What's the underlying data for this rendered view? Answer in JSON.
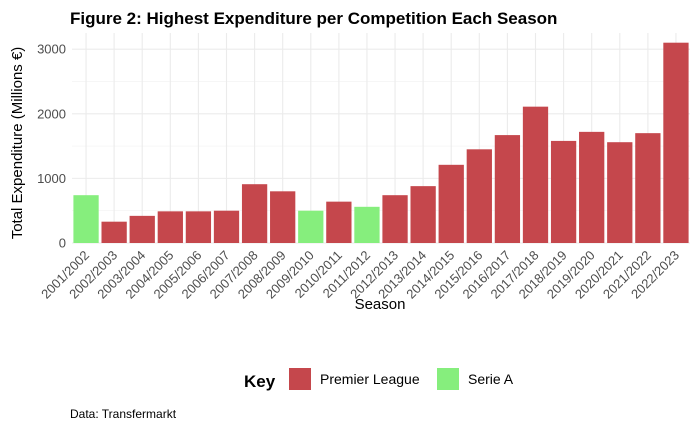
{
  "chart_data": {
    "type": "bar",
    "title": "Figure 2: Highest Expenditure per Competition Each Season",
    "xlabel": "Season",
    "ylabel": "Total Expenditure (Millions €)",
    "ylim": [
      0,
      3250
    ],
    "yticks": [
      0,
      1000,
      2000,
      3000
    ],
    "grid": true,
    "legend": {
      "title": "Key",
      "position": "bottom",
      "entries": [
        {
          "label": "Premier League",
          "color": "#C5474C"
        },
        {
          "label": "Serie A",
          "color": "#86EE7D"
        }
      ]
    },
    "categories": [
      "2001/2002",
      "2002/2003",
      "2003/2004",
      "2004/2005",
      "2005/2006",
      "2006/2007",
      "2007/2008",
      "2008/2009",
      "2009/2010",
      "2010/2011",
      "2011/2012",
      "2012/2013",
      "2013/2014",
      "2014/2015",
      "2015/2016",
      "2016/2017",
      "2017/2018",
      "2018/2019",
      "2019/2020",
      "2020/2021",
      "2021/2022",
      "2022/2023"
    ],
    "values": [
      740,
      330,
      420,
      490,
      490,
      500,
      910,
      800,
      500,
      640,
      560,
      740,
      880,
      1210,
      1450,
      1670,
      2110,
      1580,
      1720,
      1560,
      1700,
      3100
    ],
    "competition": [
      "Serie A",
      "Premier League",
      "Premier League",
      "Premier League",
      "Premier League",
      "Premier League",
      "Premier League",
      "Premier League",
      "Serie A",
      "Premier League",
      "Serie A",
      "Premier League",
      "Premier League",
      "Premier League",
      "Premier League",
      "Premier League",
      "Premier League",
      "Premier League",
      "Premier League",
      "Premier League",
      "Premier League",
      "Premier League"
    ],
    "caption": "Data: Transfermarkt"
  }
}
